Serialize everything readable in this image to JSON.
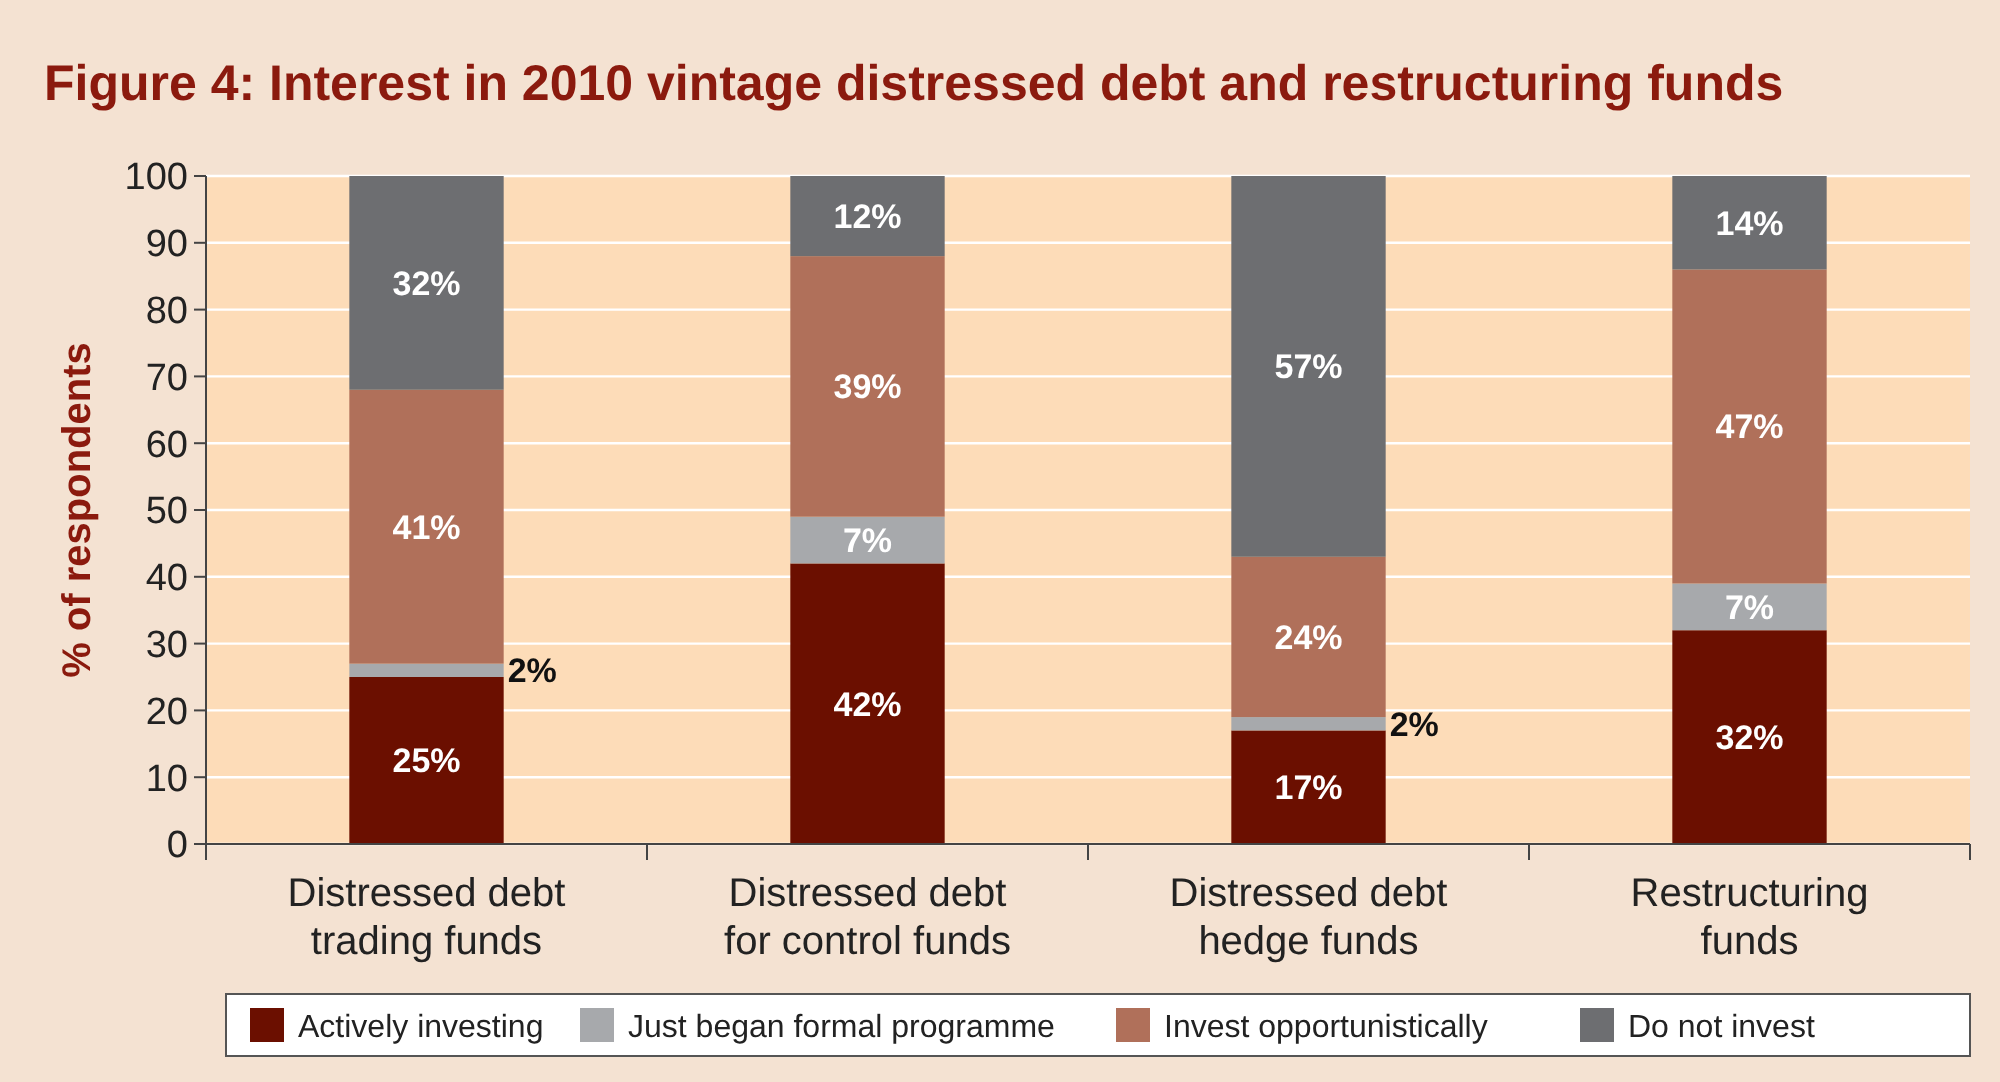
{
  "chart_data": {
    "type": "bar",
    "stacked": true,
    "title": "Figure 4: Interest in 2010 vintage distressed debt and restructuring funds",
    "ylabel": "% of respondents",
    "categories": [
      "Distressed debt trading funds",
      "Distressed debt for control funds",
      "Distressed debt hedge funds",
      "Restructuring funds"
    ],
    "series": [
      {
        "name": "Actively investing",
        "color": "#6b0f00",
        "values": [
          25,
          42,
          17,
          32
        ],
        "value_labels": [
          "25%",
          "42%",
          "17%",
          "32%"
        ]
      },
      {
        "name": "Just began formal programme",
        "color": "#a7a9ac",
        "values": [
          2,
          7,
          2,
          7
        ],
        "value_labels": [
          "2%",
          "7%",
          "2%",
          "7%"
        ]
      },
      {
        "name": "Invest opportunistically",
        "color": "#b0705a",
        "values": [
          41,
          39,
          24,
          47
        ],
        "value_labels": [
          "41%",
          "39%",
          "24%",
          "47%"
        ]
      },
      {
        "name": "Do not invest",
        "color": "#6d6e71",
        "values": [
          32,
          12,
          57,
          14
        ],
        "value_labels": [
          "32%",
          "12%",
          "57%",
          "14%"
        ]
      }
    ],
    "ylim": [
      0,
      100
    ],
    "yticks": [
      0,
      10,
      20,
      30,
      40,
      50,
      60,
      70,
      80,
      90,
      100
    ],
    "grid": "y",
    "legend": "bottom"
  }
}
